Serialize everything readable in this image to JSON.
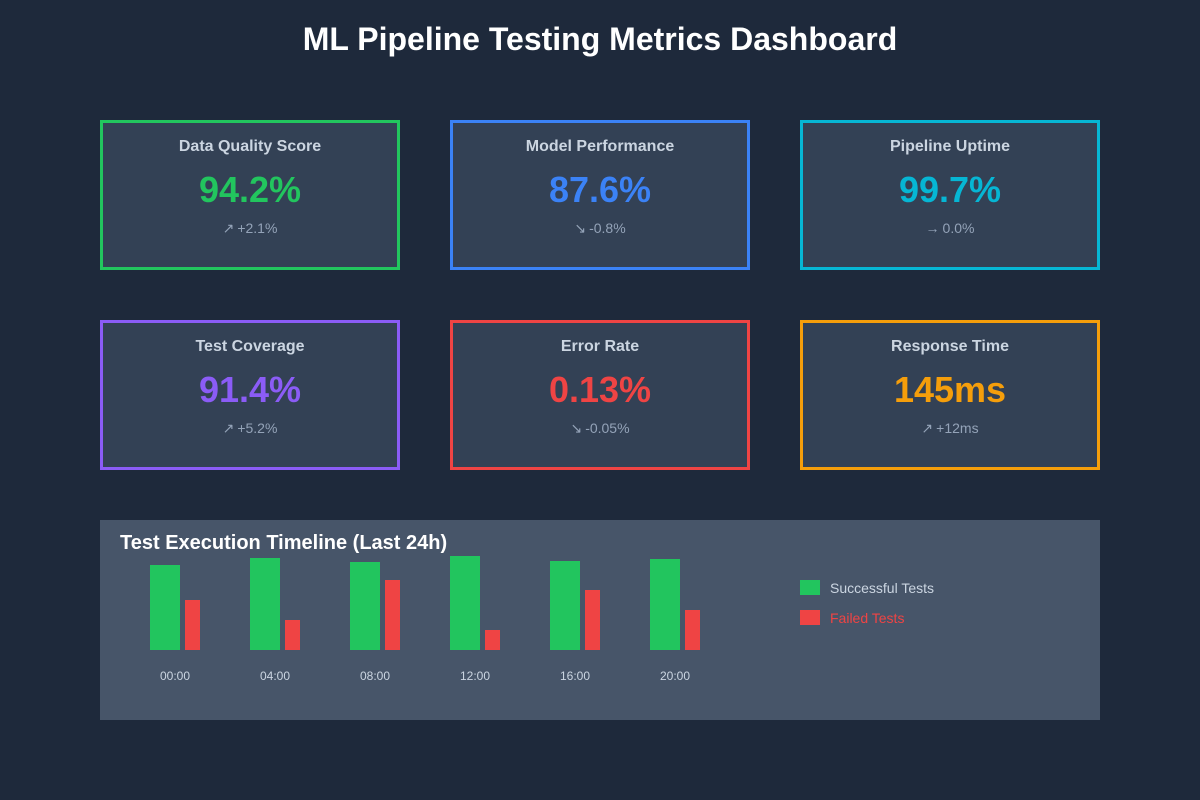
{
  "header": {
    "title": "ML Pipeline Testing Metrics Dashboard"
  },
  "cards": [
    {
      "title": "Data Quality Score",
      "value": "94.2%",
      "trend_icon": "trend-up-icon",
      "arrow": "↗",
      "change": "+2.1%",
      "color": "#22c55e"
    },
    {
      "title": "Model Performance",
      "value": "87.6%",
      "trend_icon": "trend-down-icon",
      "arrow": "↘",
      "change": "-0.8%",
      "color": "#3b82f6"
    },
    {
      "title": "Pipeline Uptime",
      "value": "99.7%",
      "trend_icon": "trend-flat-icon",
      "arrow": "→",
      "change": "0.0%",
      "color": "#06b6d4"
    },
    {
      "title": "Test Coverage",
      "value": "91.4%",
      "trend_icon": "trend-up-icon",
      "arrow": "↗",
      "change": "+5.2%",
      "color": "#8b5cf6"
    },
    {
      "title": "Error Rate",
      "value": "0.13%",
      "trend_icon": "trend-down-icon",
      "arrow": "↘",
      "change": "-0.05%",
      "color": "#ef4444"
    },
    {
      "title": "Response Time",
      "value": "145ms",
      "trend_icon": "trend-up-icon",
      "arrow": "↗",
      "change": "+12ms",
      "color": "#f59e0b"
    }
  ],
  "chart_data": {
    "type": "bar",
    "title": "Test Execution Timeline (Last 24h)",
    "xlabel": "",
    "ylabel": "",
    "grid": false,
    "legend_position": "right",
    "categories": [
      "00:00",
      "04:00",
      "08:00",
      "12:00",
      "16:00",
      "20:00"
    ],
    "series": [
      {
        "name": "Successful Tests",
        "color": "#22c55e",
        "values": [
          85,
          92,
          88,
          94,
          89,
          91
        ]
      },
      {
        "name": "Failed Tests",
        "color": "#ef4444",
        "values": [
          50,
          30,
          70,
          20,
          60,
          40
        ]
      }
    ],
    "ylim": [
      0,
      100
    ]
  },
  "legend": [
    {
      "label": "Successful Tests",
      "color": "#22c55e",
      "text_color": "#cbd5e1"
    },
    {
      "label": "Failed Tests",
      "color": "#ef4444",
      "text_color": "#ef4444"
    }
  ]
}
